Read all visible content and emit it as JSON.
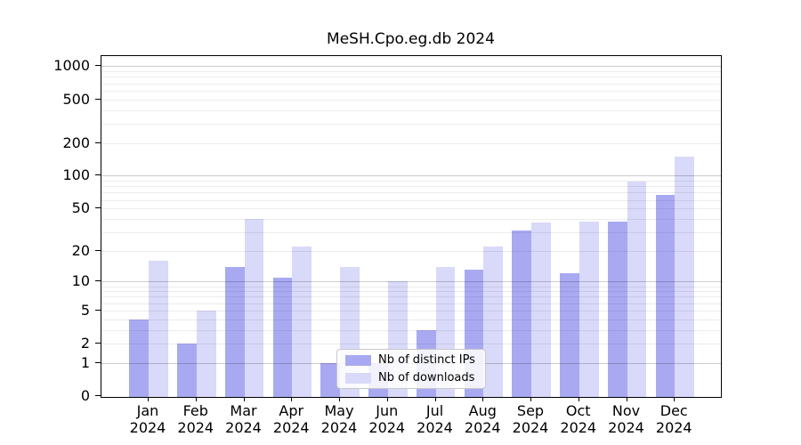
{
  "title": "MeSH.Cpo.eg.db 2024",
  "colors": {
    "bar_distinct_ips": "#a9a9f2",
    "bar_downloads": "#d9d9f9",
    "axis": "#000000"
  },
  "legend": {
    "items": [
      {
        "label": "Nb of distinct IPs",
        "color": "#a9a9f2"
      },
      {
        "label": "Nb of downloads",
        "color": "#d9d9f9"
      }
    ]
  },
  "axes": {
    "y_tick_labels": [
      "0",
      "1",
      "2",
      "5",
      "10",
      "20",
      "50",
      "100",
      "200",
      "500",
      "1000"
    ],
    "x_months": [
      "Jan",
      "Feb",
      "Mar",
      "Apr",
      "May",
      "Jun",
      "Jul",
      "Aug",
      "Sep",
      "Oct",
      "Nov",
      "Dec"
    ],
    "x_year": "2024"
  },
  "chart_data": {
    "type": "bar",
    "title": "MeSH.Cpo.eg.db 2024",
    "categories": [
      "Jan 2024",
      "Feb 2024",
      "Mar 2024",
      "Apr 2024",
      "May 2024",
      "Jun 2024",
      "Jul 2024",
      "Aug 2024",
      "Sep 2024",
      "Oct 2024",
      "Nov 2024",
      "Dec 2024"
    ],
    "series": [
      {
        "name": "Nb of distinct IPs",
        "color": "#a9a9f2",
        "values": [
          4,
          2,
          14,
          11,
          1,
          1,
          3,
          13,
          31,
          12,
          38,
          66
        ]
      },
      {
        "name": "Nb of downloads",
        "color": "#d9d9f9",
        "values": [
          16,
          5,
          40,
          22,
          14,
          10,
          14,
          22,
          37,
          38,
          89,
          150
        ]
      }
    ],
    "xlabel": "",
    "ylabel": "",
    "yscale": "log10(value+1)",
    "ylim": [
      0,
      1240
    ],
    "y_tick_values": [
      0,
      1,
      2,
      5,
      10,
      20,
      50,
      100,
      200,
      500,
      1000
    ],
    "grid": true,
    "grid_minor_values": [
      2,
      3,
      4,
      5,
      6,
      7,
      8,
      9,
      20,
      30,
      40,
      50,
      60,
      70,
      80,
      90,
      200,
      300,
      400,
      500,
      600,
      700,
      800,
      900
    ],
    "grid_major_values": [
      1,
      10,
      100,
      1000
    ],
    "legend_position": "inside lower-center"
  }
}
